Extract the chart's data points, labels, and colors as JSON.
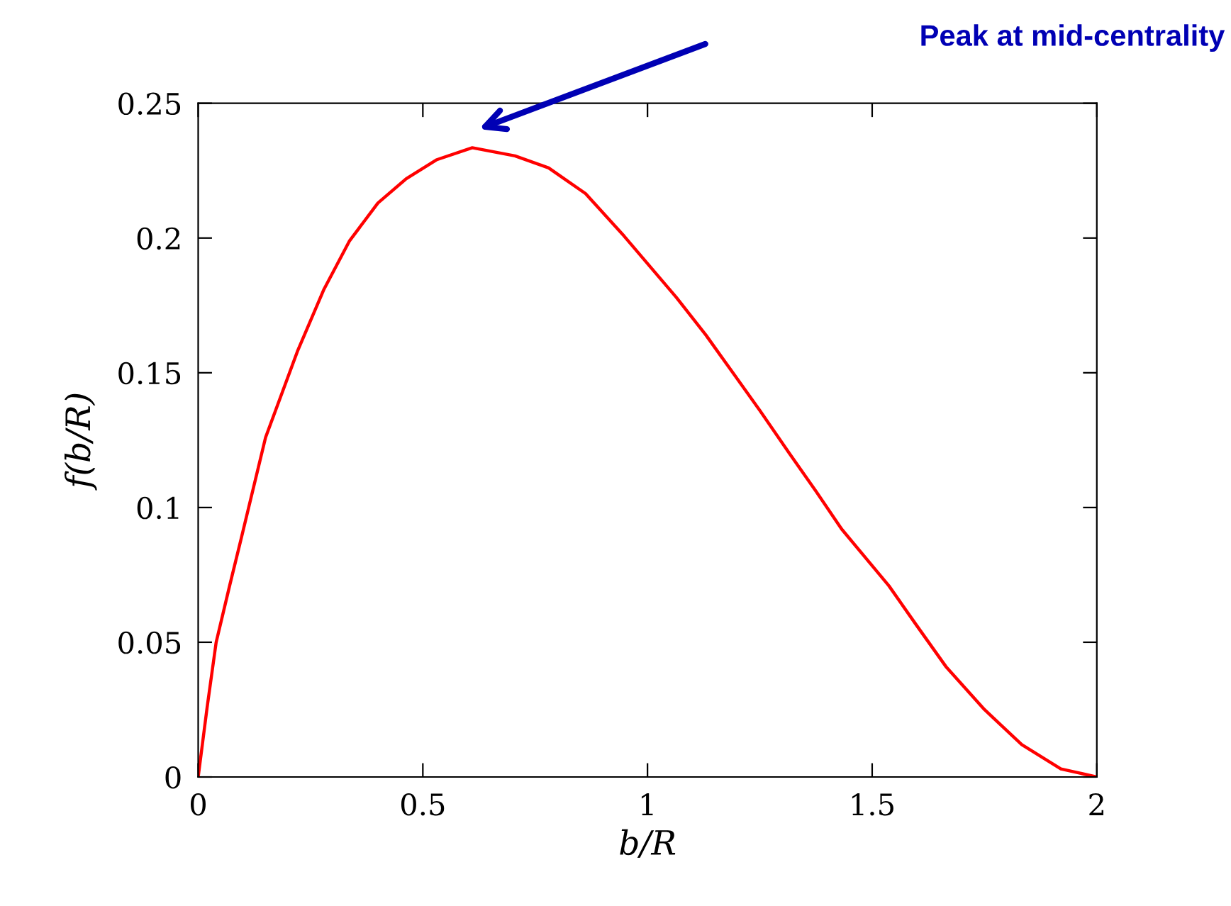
{
  "chart_data": {
    "type": "line",
    "xlabel": "b/R",
    "ylabel": "f(b/R)",
    "x": [
      0,
      0.02,
      0.04,
      0.07,
      0.095,
      0.15,
      0.221,
      0.28,
      0.337,
      0.4,
      0.463,
      0.53,
      0.61,
      0.705,
      0.78,
      0.862,
      0.948,
      1.064,
      1.13,
      1.19,
      1.25,
      1.316,
      1.375,
      1.432,
      1.537,
      1.6,
      1.664,
      1.75,
      1.833,
      1.92,
      2.0
    ],
    "series": [
      {
        "color": "#ff0000",
        "values": [
          0,
          0.026,
          0.05,
          0.071,
          0.088,
          0.126,
          0.158,
          0.181,
          0.199,
          0.213,
          0.222,
          0.229,
          0.2335,
          0.2305,
          0.226,
          0.2165,
          0.2007,
          0.178,
          0.164,
          0.15,
          0.136,
          0.12,
          0.106,
          0.092,
          0.071,
          0.056,
          0.041,
          0.025,
          0.012,
          0.003,
          0
        ]
      }
    ],
    "xlim": [
      0,
      2
    ],
    "xticks": [
      0,
      0.5,
      1,
      1.5,
      2
    ],
    "ylim": [
      0,
      0.25
    ],
    "yticks": [
      0,
      0.05,
      0.1,
      0.15,
      0.2,
      0.25
    ],
    "grid": false,
    "marker": "none",
    "line_style": "solid",
    "annotations": [
      "Peak at mid-centrality"
    ]
  }
}
